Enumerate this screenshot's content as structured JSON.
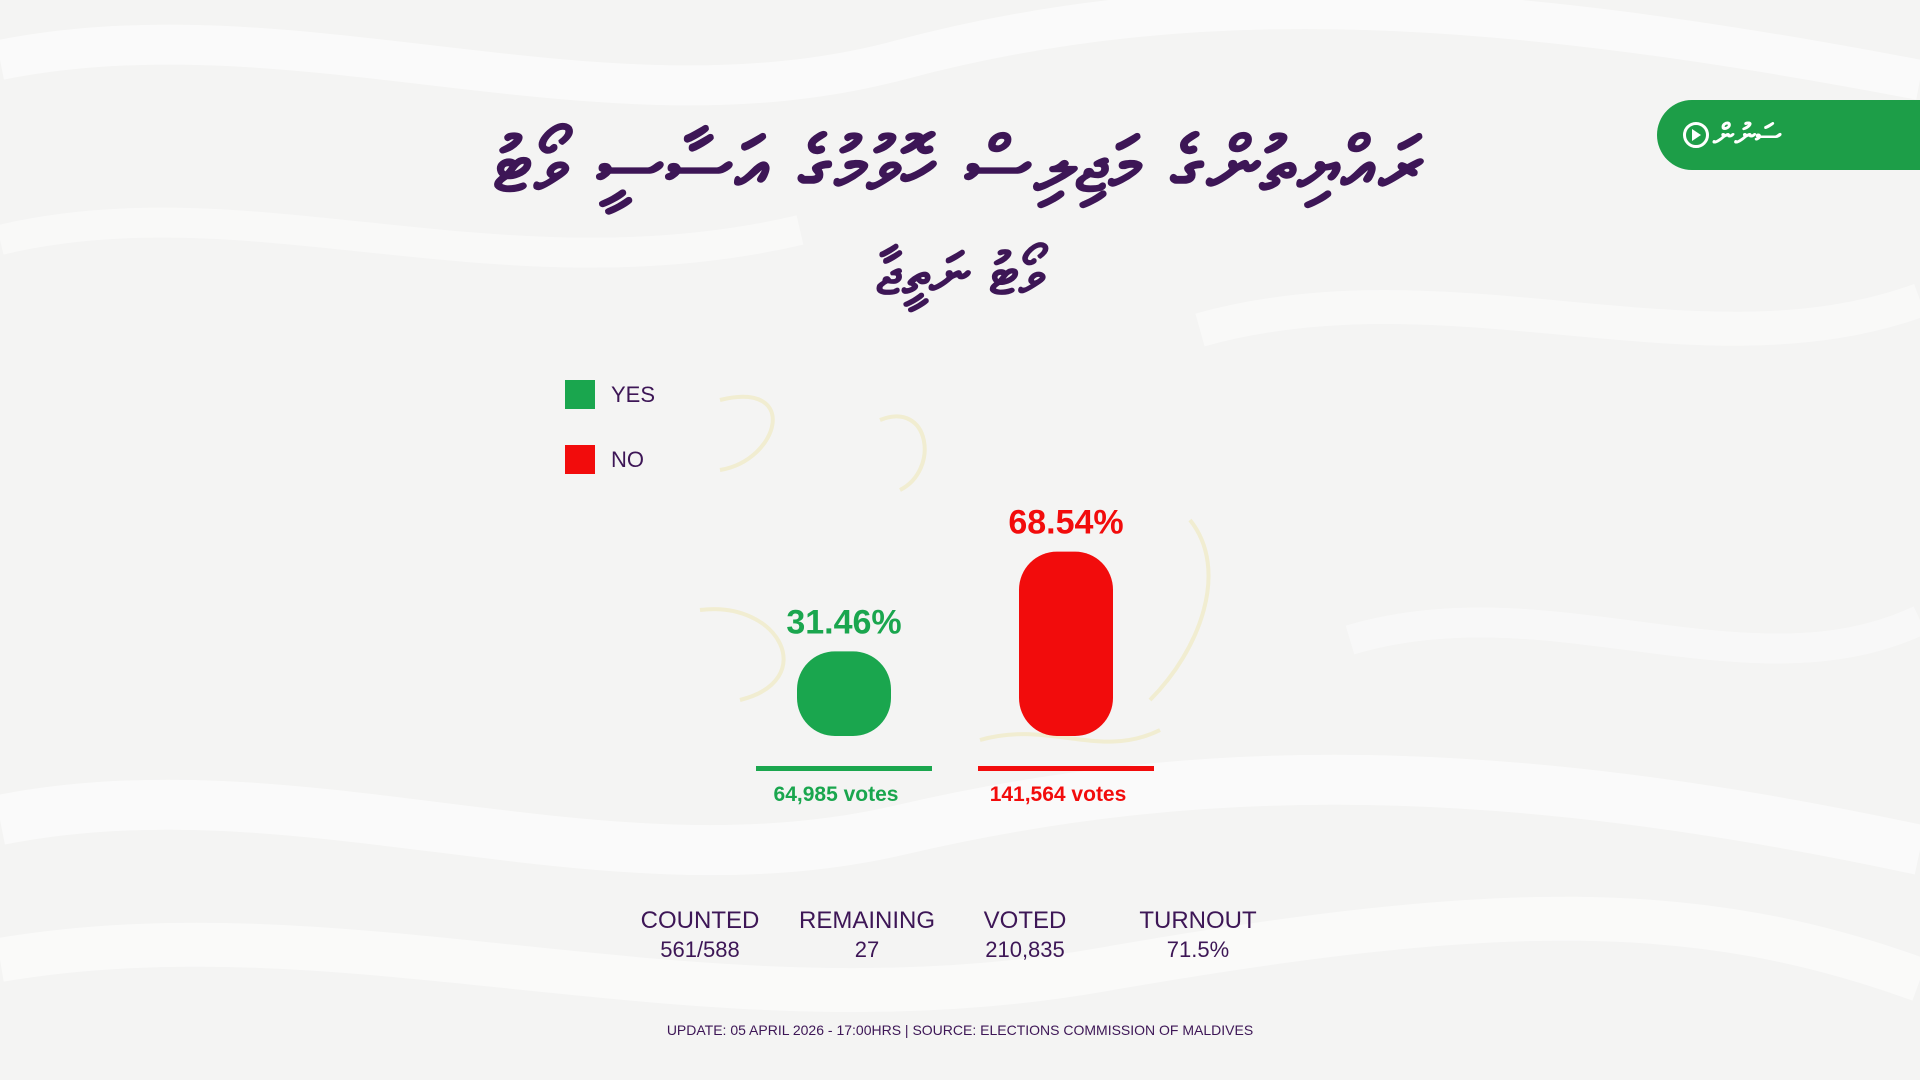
{
  "title": {
    "main": "ރައްޔިތުންގެ މަޖިލިސް ހޮވުމުގެ އަސާސީ ވޯޓު",
    "sub": "ވޯޓު ނަތީޖާ"
  },
  "brand": {
    "name": "ސަނުން",
    "icon": "play-circle-icon",
    "color": "#1d9e48"
  },
  "colors": {
    "yes": "#1aa64e",
    "no": "#f20c0c",
    "text": "#3d1656"
  },
  "chart_data": {
    "type": "bar",
    "categories": [
      "YES",
      "NO"
    ],
    "values": [
      31.46,
      68.54
    ],
    "value_labels": [
      "31.46%",
      "68.54%"
    ],
    "votes": [
      "64,985 votes",
      "141,564 votes"
    ],
    "ylim": [
      0,
      100
    ],
    "grid": false,
    "legend": "top-left",
    "legend_entries": [
      "YES",
      "NO"
    ],
    "title": "",
    "xlabel": "",
    "ylabel": ""
  },
  "stats": [
    {
      "label": "COUNTED",
      "value": "561/588"
    },
    {
      "label": "REMAINING",
      "value": "27"
    },
    {
      "label": "VOTED",
      "value": "210,835"
    },
    {
      "label": "TURNOUT",
      "value": "71.5%"
    }
  ],
  "footer": "UPDATE: 05 APRIL 2026 - 17:00HRS  | SOURCE: ELECTIONS COMMISSION OF MALDIVES"
}
